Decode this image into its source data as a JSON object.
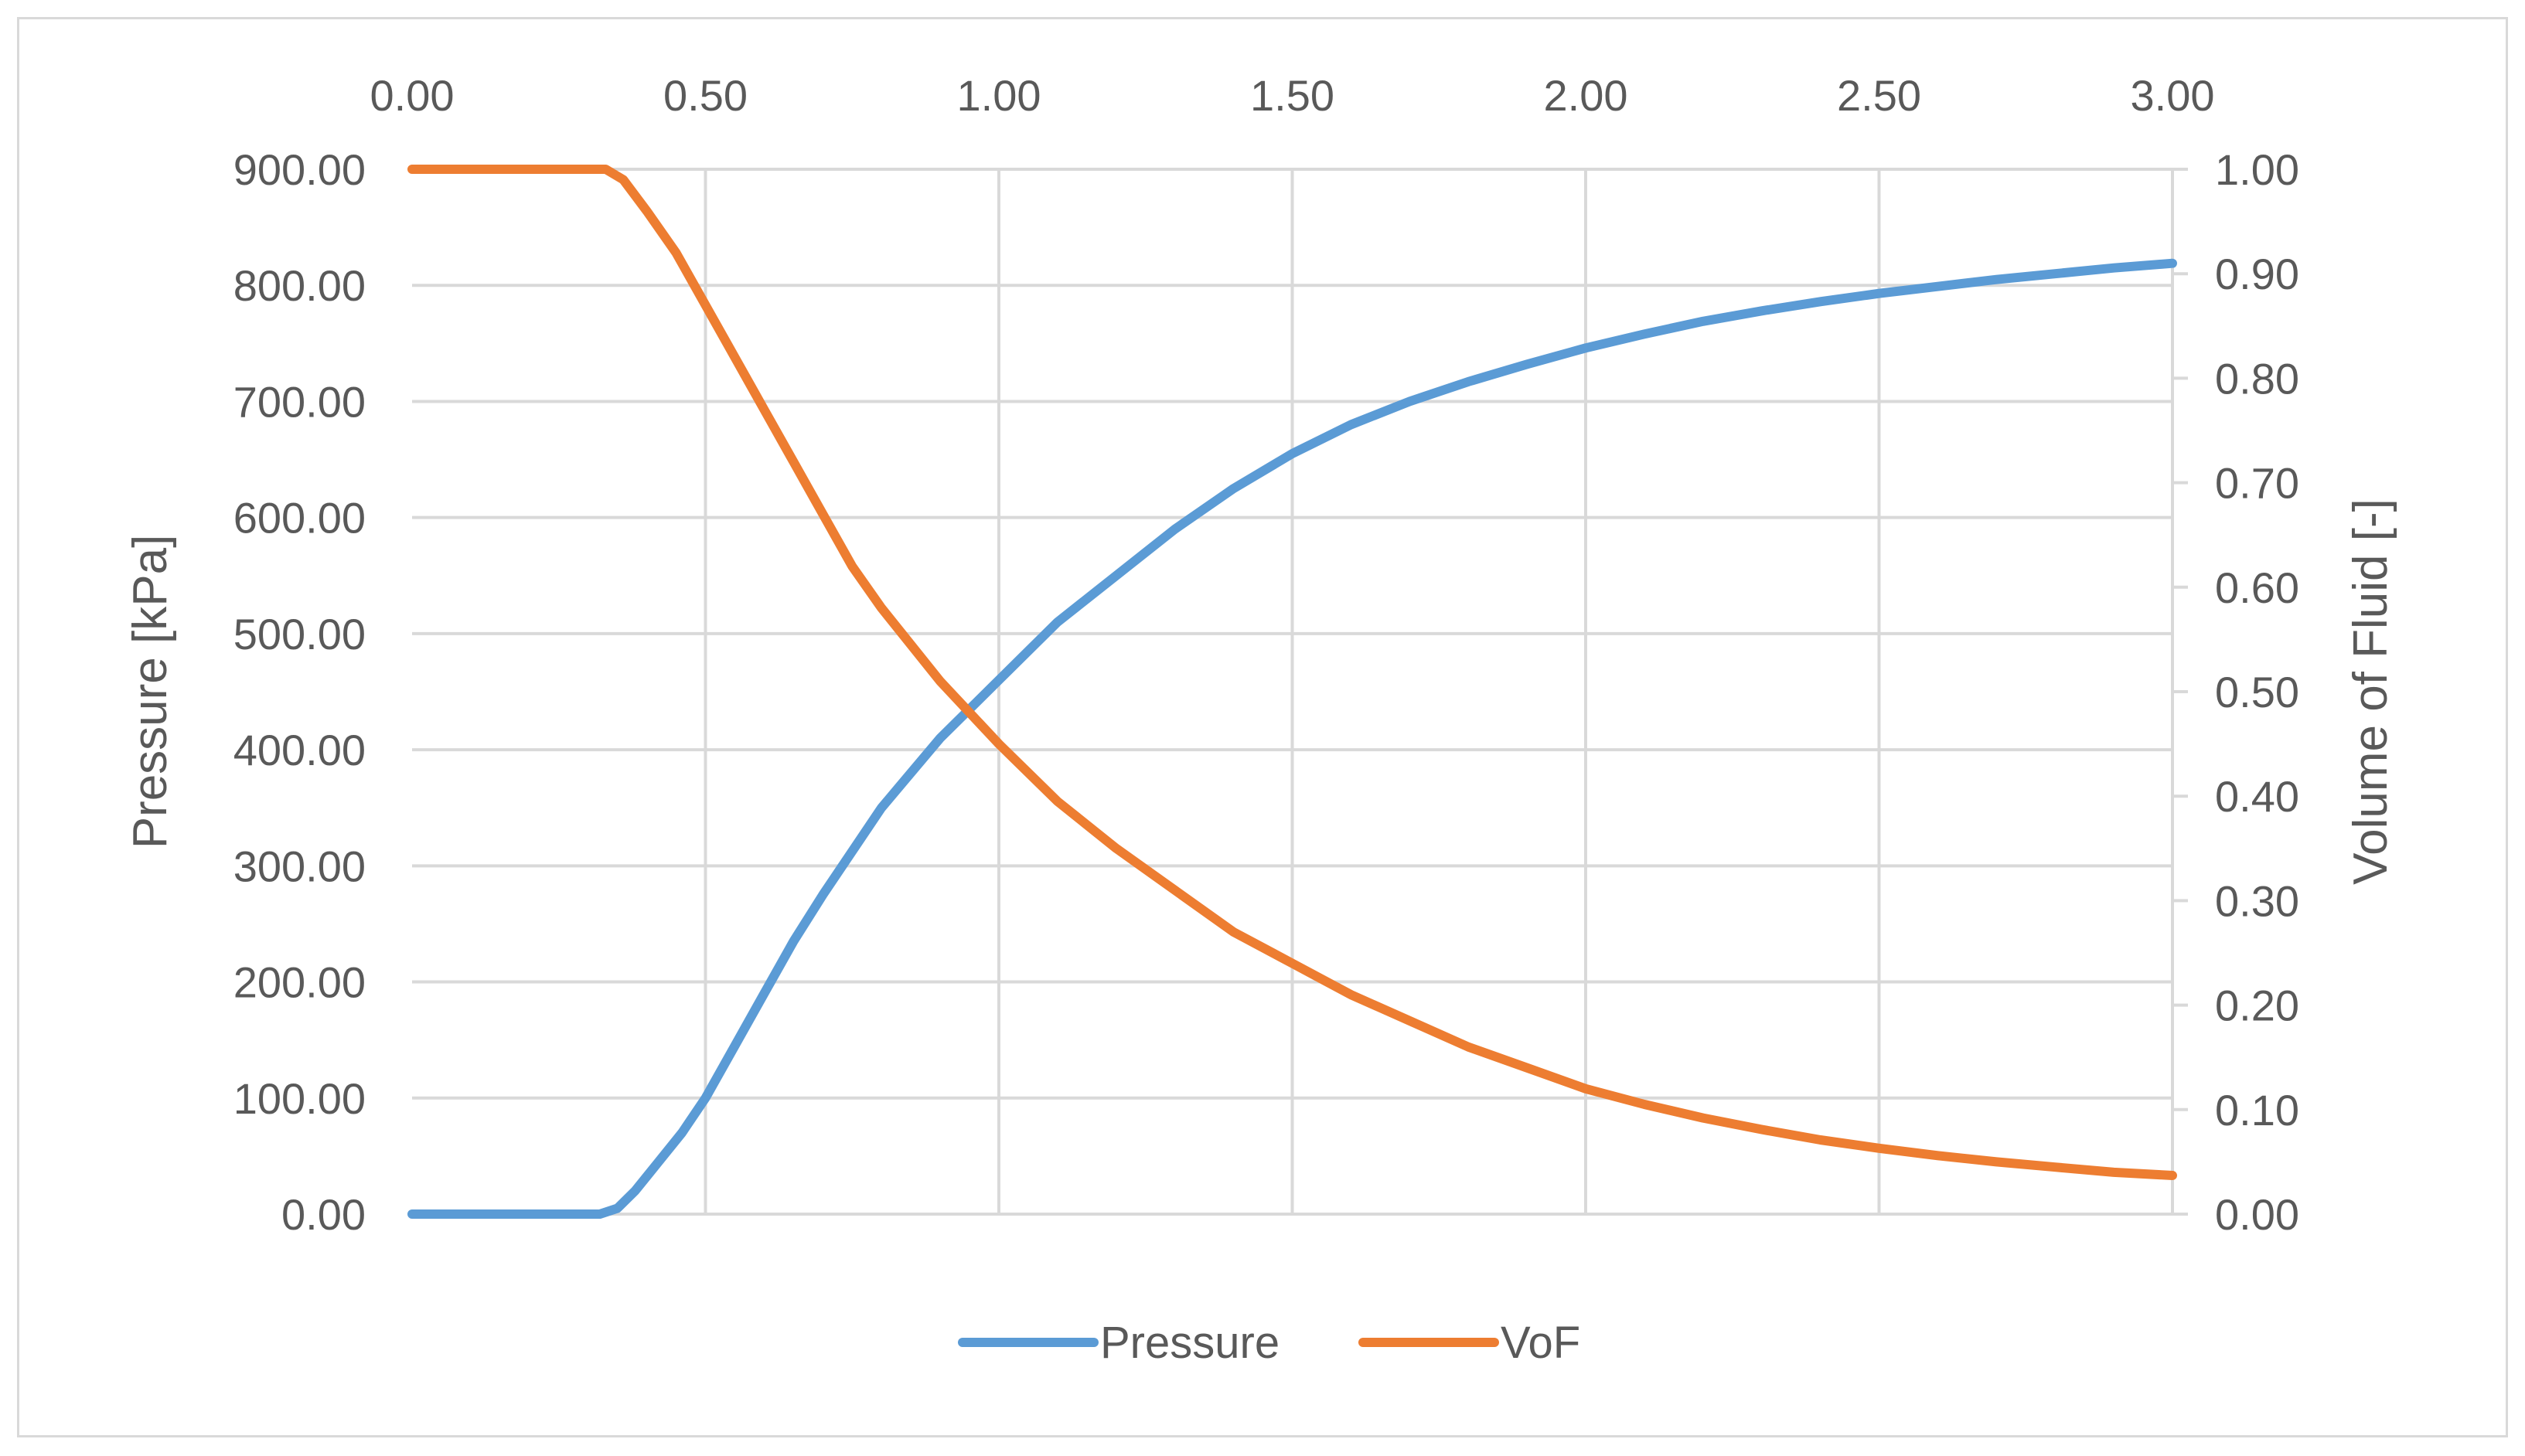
{
  "chart_data": {
    "type": "line",
    "title": "",
    "xlabel": "",
    "ylabel": "Pressure [kPa]",
    "y2label": "Volume of Fluid [-]",
    "xlim": [
      0,
      3
    ],
    "ylim": [
      0,
      900
    ],
    "y2lim": [
      0,
      1
    ],
    "x_ticks": [
      "0.00",
      "0.50",
      "1.00",
      "1.50",
      "2.00",
      "2.50",
      "3.00"
    ],
    "y_ticks": [
      "0.00",
      "100.00",
      "200.00",
      "300.00",
      "400.00",
      "500.00",
      "600.00",
      "700.00",
      "800.00",
      "900.00"
    ],
    "y2_ticks": [
      "0.00",
      "0.10",
      "0.20",
      "0.30",
      "0.40",
      "0.50",
      "0.60",
      "0.70",
      "0.80",
      "0.90",
      "1.00"
    ],
    "grid": true,
    "legend_position": "bottom",
    "colors": {
      "Pressure": "#5b9bd5",
      "VoF": "#ed7d31",
      "grid": "#d9d9d9",
      "text": "#595959"
    },
    "series": [
      {
        "name": "Pressure",
        "axis": "left",
        "x": [
          0.0,
          0.3,
          0.32,
          0.35,
          0.38,
          0.42,
          0.46,
          0.5,
          0.55,
          0.6,
          0.65,
          0.7,
          0.8,
          0.9,
          1.0,
          1.1,
          1.2,
          1.3,
          1.4,
          1.5,
          1.6,
          1.7,
          1.8,
          1.9,
          2.0,
          2.1,
          2.2,
          2.3,
          2.4,
          2.5,
          2.6,
          2.7,
          2.8,
          2.9,
          3.0
        ],
        "values": [
          0,
          0,
          0,
          5,
          20,
          45,
          70,
          100,
          145,
          190,
          235,
          275,
          350,
          410,
          460,
          510,
          550,
          590,
          625,
          655,
          680,
          700,
          717,
          732,
          746,
          758,
          769,
          778,
          786,
          793,
          799,
          805,
          810,
          815,
          819
        ]
      },
      {
        "name": "VoF",
        "axis": "right",
        "x": [
          0.0,
          0.3,
          0.33,
          0.36,
          0.4,
          0.45,
          0.5,
          0.55,
          0.6,
          0.65,
          0.7,
          0.75,
          0.8,
          0.9,
          1.0,
          1.1,
          1.2,
          1.3,
          1.4,
          1.5,
          1.6,
          1.7,
          1.8,
          1.9,
          2.0,
          2.1,
          2.2,
          2.3,
          2.4,
          2.5,
          2.6,
          2.7,
          2.8,
          2.9,
          3.0
        ],
        "values": [
          1.0,
          1.0,
          1.0,
          0.99,
          0.96,
          0.92,
          0.87,
          0.82,
          0.77,
          0.72,
          0.67,
          0.62,
          0.58,
          0.51,
          0.45,
          0.395,
          0.35,
          0.31,
          0.27,
          0.24,
          0.21,
          0.185,
          0.16,
          0.14,
          0.12,
          0.105,
          0.092,
          0.081,
          0.071,
          0.063,
          0.056,
          0.05,
          0.045,
          0.04,
          0.037
        ]
      }
    ]
  }
}
